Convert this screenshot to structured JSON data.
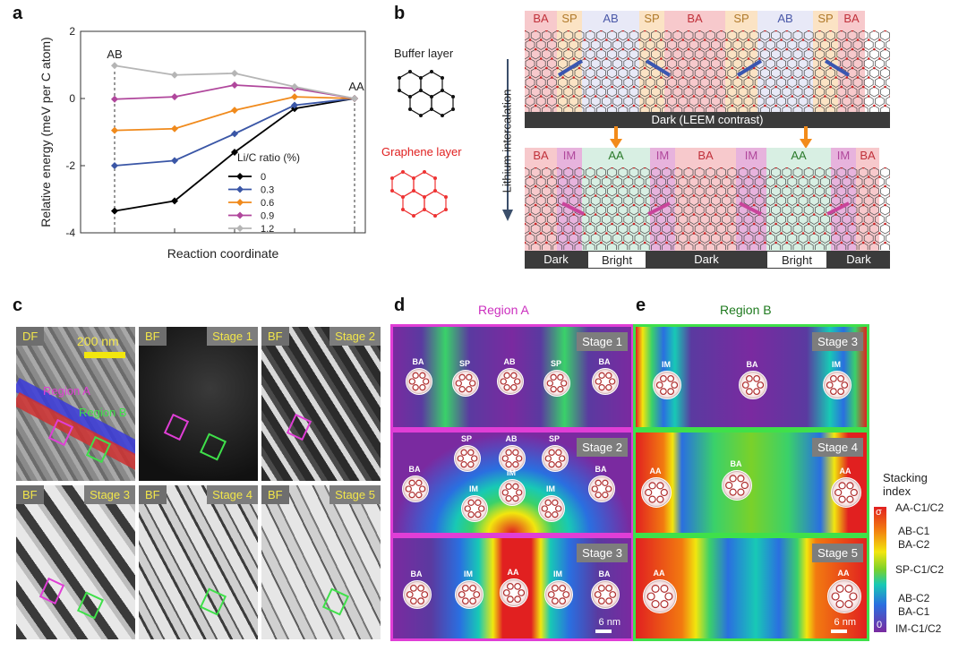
{
  "panel_labels": {
    "a": "a",
    "b": "b",
    "c": "c",
    "d": "d",
    "e": "e"
  },
  "chart_data": {
    "type": "line",
    "x": [
      0,
      1,
      2,
      3,
      4
    ],
    "xlabel": "Reaction coordinate",
    "ylabel": "Relative energy (meV per C atom)",
    "ylim": [
      -4,
      2
    ],
    "yticks": [
      2,
      0,
      -2,
      -4
    ],
    "annotations": [
      "AB",
      "AA"
    ],
    "legend_title": "Li/C ratio (%)",
    "series": [
      {
        "name": "0",
        "color": "#000000",
        "values": [
          -3.35,
          -3.05,
          -1.6,
          -0.3,
          0
        ]
      },
      {
        "name": "0.3",
        "color": "#3a56a6",
        "values": [
          -2.0,
          -1.85,
          -1.05,
          -0.2,
          0
        ]
      },
      {
        "name": "0.6",
        "color": "#f08a1c",
        "values": [
          -0.95,
          -0.9,
          -0.35,
          0.05,
          0
        ]
      },
      {
        "name": "0.9",
        "color": "#b0479c",
        "values": [
          -0.02,
          0.05,
          0.4,
          0.3,
          0
        ]
      },
      {
        "name": "1.2",
        "color": "#b5b5b5",
        "values": [
          0.98,
          0.7,
          0.75,
          0.35,
          0
        ]
      }
    ]
  },
  "panel_b": {
    "buffer_label": "Buffer layer",
    "graphene_label": "Graphene layer",
    "arrow_label": "Lithium intercalation",
    "top_regions": [
      "BA",
      "SP",
      "AB",
      "SP",
      "BA",
      "SP",
      "AB",
      "SP",
      "BA"
    ],
    "top_bar": "Dark (LEEM contrast)",
    "bottom_regions": [
      "BA",
      "IM",
      "AA",
      "IM",
      "BA",
      "IM",
      "AA",
      "IM",
      "BA"
    ],
    "bottom_bar": [
      "Dark",
      "Bright",
      "Dark",
      "Bright",
      "Dark"
    ],
    "colors": {
      "BA": "#f7c9cc",
      "SP": "#fbe3c4",
      "AB": "#e8e9f7",
      "IM": "#e7b3dd",
      "AA": "#d8efe3"
    }
  },
  "panel_c": {
    "scale_bar": "200 nm",
    "region_a": "Region A",
    "region_b": "Region B",
    "tiles": [
      {
        "mode": "DF",
        "stage": ""
      },
      {
        "mode": "BF",
        "stage": "Stage 1"
      },
      {
        "mode": "BF",
        "stage": "Stage 2"
      },
      {
        "mode": "BF",
        "stage": "Stage 3"
      },
      {
        "mode": "BF",
        "stage": "Stage 4"
      },
      {
        "mode": "BF",
        "stage": "Stage 5"
      }
    ]
  },
  "panel_d": {
    "title": "Region A",
    "stage1": {
      "stage": "Stage 1",
      "labels": [
        "BA",
        "SP",
        "AB",
        "SP",
        "BA"
      ]
    },
    "stage2": {
      "stage": "Stage 2",
      "labels": [
        "SP",
        "AB",
        "SP",
        "BA",
        "IM",
        "IM",
        "IM",
        "BA"
      ]
    },
    "stage3": {
      "stage": "Stage 3",
      "labels": [
        "BA",
        "IM",
        "AA",
        "IM",
        "BA"
      ],
      "scale": "6 nm"
    }
  },
  "panel_e": {
    "title": "Region B",
    "stage3": {
      "stage": "Stage 3",
      "labels": [
        "IM",
        "BA",
        "IM"
      ]
    },
    "stage4": {
      "stage": "Stage 4",
      "labels": [
        "AA",
        "BA",
        "AA"
      ]
    },
    "stage5": {
      "stage": "Stage 5",
      "labels": [
        "AA",
        "AA"
      ],
      "scale": "6 nm"
    }
  },
  "colorbar": {
    "title": [
      "Stacking",
      "index"
    ],
    "top_value": "σ",
    "bottom_value": "0",
    "entries": [
      "AA-C1/C2",
      "AB-C1",
      "BA-C2",
      "SP-C1/C2",
      "AB-C2",
      "BA-C1",
      "IM-C1/C2"
    ]
  }
}
